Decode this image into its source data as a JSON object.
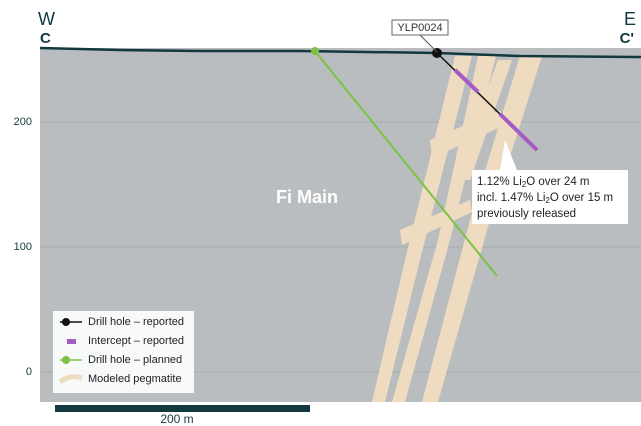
{
  "section": {
    "west": "W",
    "east": "E",
    "west_label": "C",
    "east_label": "C'"
  },
  "elevation_labels": [
    "200",
    "100",
    "0"
  ],
  "unit_label": "Fi Main",
  "hole_label": "YLP0024",
  "annotation": [
    {
      "pre": "1.12% Li",
      "sub": "2",
      "post": "O over 24 m"
    },
    {
      "pre": "incl. 1.47% Li",
      "sub": "2",
      "post": "O over 15 m"
    },
    {
      "pre": "previously released"
    }
  ],
  "legend": [
    "Drill hole – reported",
    "Intercept – reported",
    "Drill hole – planned",
    "Modeled pegmatite"
  ],
  "scale_bar": "200 m"
}
